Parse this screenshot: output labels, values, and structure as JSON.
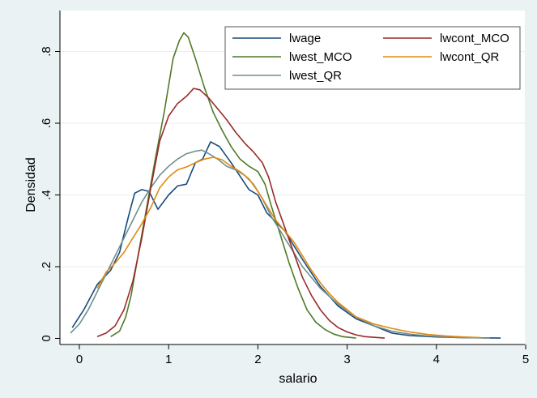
{
  "chart_data": {
    "type": "line",
    "title": "",
    "xlabel": "salario",
    "ylabel": "Densidad",
    "xlim": [
      -0.2,
      5
    ],
    "ylim": [
      0,
      0.88
    ],
    "xticks": [
      0,
      1,
      2,
      3,
      4,
      5
    ],
    "xtick_labels": [
      "0",
      "1",
      "2",
      "3",
      "4",
      "5"
    ],
    "yticks": [
      0,
      0.2,
      0.4,
      0.6,
      0.8
    ],
    "ytick_labels": [
      "0",
      ".2",
      ".4",
      ".6",
      ".8"
    ],
    "grid": "horizontal",
    "legend_position": "top-right",
    "colors": {
      "background": "#eaf2f3",
      "plot_area": "#ffffff",
      "grid": "#e8eef0"
    },
    "series": [
      {
        "name": "lwage",
        "color": "#1a4a7a",
        "points": [
          [
            -0.08,
            0.03
          ],
          [
            0.05,
            0.08
          ],
          [
            0.2,
            0.15
          ],
          [
            0.35,
            0.19
          ],
          [
            0.45,
            0.24
          ],
          [
            0.55,
            0.34
          ],
          [
            0.62,
            0.405
          ],
          [
            0.7,
            0.415
          ],
          [
            0.78,
            0.41
          ],
          [
            0.88,
            0.36
          ],
          [
            1.0,
            0.4
          ],
          [
            1.1,
            0.425
          ],
          [
            1.2,
            0.43
          ],
          [
            1.3,
            0.49
          ],
          [
            1.38,
            0.5
          ],
          [
            1.47,
            0.548
          ],
          [
            1.57,
            0.535
          ],
          [
            1.7,
            0.49
          ],
          [
            1.9,
            0.415
          ],
          [
            2.0,
            0.4
          ],
          [
            2.1,
            0.35
          ],
          [
            2.3,
            0.3
          ],
          [
            2.5,
            0.22
          ],
          [
            2.7,
            0.145
          ],
          [
            2.9,
            0.09
          ],
          [
            3.1,
            0.055
          ],
          [
            3.3,
            0.035
          ],
          [
            3.5,
            0.015
          ],
          [
            3.7,
            0.008
          ],
          [
            4.0,
            0.004
          ],
          [
            4.3,
            0.002
          ],
          [
            4.72,
            0.001
          ]
        ]
      },
      {
        "name": "lwest_MCO",
        "color": "#4f7a28",
        "points": [
          [
            0.35,
            0.005
          ],
          [
            0.45,
            0.02
          ],
          [
            0.52,
            0.06
          ],
          [
            0.58,
            0.12
          ],
          [
            0.65,
            0.22
          ],
          [
            0.75,
            0.36
          ],
          [
            0.85,
            0.5
          ],
          [
            0.95,
            0.63
          ],
          [
            1.05,
            0.78
          ],
          [
            1.12,
            0.83
          ],
          [
            1.17,
            0.852
          ],
          [
            1.22,
            0.84
          ],
          [
            1.3,
            0.78
          ],
          [
            1.4,
            0.7
          ],
          [
            1.5,
            0.63
          ],
          [
            1.6,
            0.58
          ],
          [
            1.7,
            0.535
          ],
          [
            1.8,
            0.5
          ],
          [
            1.9,
            0.48
          ],
          [
            2.0,
            0.465
          ],
          [
            2.08,
            0.43
          ],
          [
            2.15,
            0.37
          ],
          [
            2.25,
            0.29
          ],
          [
            2.35,
            0.21
          ],
          [
            2.45,
            0.14
          ],
          [
            2.55,
            0.08
          ],
          [
            2.65,
            0.045
          ],
          [
            2.75,
            0.025
          ],
          [
            2.85,
            0.012
          ],
          [
            2.95,
            0.005
          ],
          [
            3.1,
            0.001
          ]
        ]
      },
      {
        "name": "lwest_QR",
        "color": "#6f8f8f",
        "points": [
          [
            -0.1,
            0.015
          ],
          [
            0.0,
            0.04
          ],
          [
            0.1,
            0.08
          ],
          [
            0.2,
            0.13
          ],
          [
            0.3,
            0.18
          ],
          [
            0.4,
            0.23
          ],
          [
            0.5,
            0.28
          ],
          [
            0.6,
            0.33
          ],
          [
            0.7,
            0.38
          ],
          [
            0.8,
            0.42
          ],
          [
            0.9,
            0.455
          ],
          [
            1.0,
            0.48
          ],
          [
            1.1,
            0.5
          ],
          [
            1.2,
            0.515
          ],
          [
            1.3,
            0.522
          ],
          [
            1.37,
            0.525
          ],
          [
            1.45,
            0.515
          ],
          [
            1.55,
            0.5
          ],
          [
            1.65,
            0.48
          ],
          [
            1.75,
            0.47
          ],
          [
            1.85,
            0.455
          ],
          [
            1.95,
            0.43
          ],
          [
            2.05,
            0.39
          ],
          [
            2.15,
            0.34
          ],
          [
            2.25,
            0.3
          ],
          [
            2.35,
            0.26
          ],
          [
            2.5,
            0.2
          ],
          [
            2.7,
            0.14
          ],
          [
            2.9,
            0.095
          ],
          [
            3.1,
            0.06
          ],
          [
            3.3,
            0.035
          ],
          [
            3.5,
            0.02
          ],
          [
            3.7,
            0.012
          ],
          [
            3.9,
            0.007
          ],
          [
            4.2,
            0.003
          ],
          [
            4.6,
            0.001
          ]
        ]
      },
      {
        "name": "lwcont_MCO",
        "color": "#9a2a2a",
        "points": [
          [
            0.2,
            0.005
          ],
          [
            0.3,
            0.015
          ],
          [
            0.4,
            0.035
          ],
          [
            0.5,
            0.08
          ],
          [
            0.6,
            0.16
          ],
          [
            0.7,
            0.28
          ],
          [
            0.8,
            0.42
          ],
          [
            0.9,
            0.55
          ],
          [
            1.0,
            0.62
          ],
          [
            1.1,
            0.655
          ],
          [
            1.2,
            0.675
          ],
          [
            1.28,
            0.697
          ],
          [
            1.35,
            0.693
          ],
          [
            1.45,
            0.67
          ],
          [
            1.55,
            0.64
          ],
          [
            1.65,
            0.61
          ],
          [
            1.75,
            0.575
          ],
          [
            1.85,
            0.545
          ],
          [
            1.95,
            0.52
          ],
          [
            2.05,
            0.49
          ],
          [
            2.12,
            0.45
          ],
          [
            2.2,
            0.38
          ],
          [
            2.3,
            0.31
          ],
          [
            2.4,
            0.24
          ],
          [
            2.5,
            0.17
          ],
          [
            2.6,
            0.12
          ],
          [
            2.7,
            0.08
          ],
          [
            2.8,
            0.05
          ],
          [
            2.9,
            0.03
          ],
          [
            3.0,
            0.018
          ],
          [
            3.1,
            0.01
          ],
          [
            3.2,
            0.005
          ],
          [
            3.42,
            0.001
          ]
        ]
      },
      {
        "name": "lwcont_QR",
        "color": "#e08a10",
        "points": [
          [
            0.2,
            0.14
          ],
          [
            0.3,
            0.185
          ],
          [
            0.4,
            0.21
          ],
          [
            0.5,
            0.24
          ],
          [
            0.6,
            0.28
          ],
          [
            0.7,
            0.32
          ],
          [
            0.8,
            0.365
          ],
          [
            0.9,
            0.42
          ],
          [
            1.0,
            0.45
          ],
          [
            1.1,
            0.47
          ],
          [
            1.2,
            0.478
          ],
          [
            1.3,
            0.49
          ],
          [
            1.4,
            0.5
          ],
          [
            1.5,
            0.505
          ],
          [
            1.6,
            0.498
          ],
          [
            1.7,
            0.48
          ],
          [
            1.8,
            0.465
          ],
          [
            1.9,
            0.445
          ],
          [
            2.0,
            0.41
          ],
          [
            2.1,
            0.37
          ],
          [
            2.2,
            0.33
          ],
          [
            2.3,
            0.3
          ],
          [
            2.4,
            0.27
          ],
          [
            2.5,
            0.23
          ],
          [
            2.6,
            0.19
          ],
          [
            2.7,
            0.155
          ],
          [
            2.8,
            0.125
          ],
          [
            2.9,
            0.1
          ],
          [
            3.0,
            0.08
          ],
          [
            3.1,
            0.06
          ],
          [
            3.3,
            0.04
          ],
          [
            3.5,
            0.028
          ],
          [
            3.7,
            0.018
          ],
          [
            3.9,
            0.011
          ],
          [
            4.1,
            0.007
          ],
          [
            4.3,
            0.004
          ],
          [
            4.5,
            0.002
          ]
        ]
      }
    ]
  }
}
